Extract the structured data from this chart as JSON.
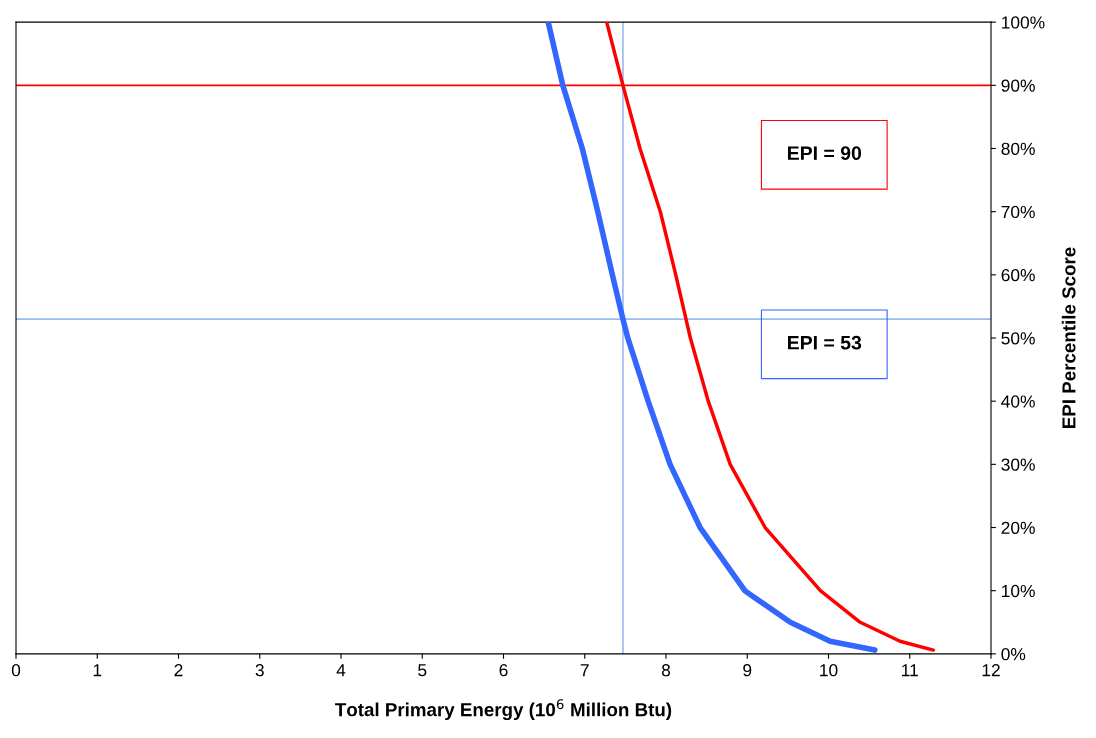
{
  "chart_data": {
    "type": "line",
    "xlabel": "Total Primary Energy (10$^{6}$ Million Btu)",
    "ylabel": "EPI Percentile Score",
    "xlim": [
      0,
      12
    ],
    "xticks": [
      0,
      1,
      2,
      3,
      4,
      5,
      6,
      7,
      8,
      9,
      10,
      11,
      12
    ],
    "ylim": [
      0,
      100
    ],
    "yticks": [
      {
        "value": 0,
        "label": "0%"
      },
      {
        "value": 10,
        "label": "10%"
      },
      {
        "value": 20,
        "label": "20%"
      },
      {
        "value": 30,
        "label": "30%"
      },
      {
        "value": 40,
        "label": "40%"
      },
      {
        "value": 50,
        "label": "50%"
      },
      {
        "value": 60,
        "label": "60%"
      },
      {
        "value": 70,
        "label": "70%"
      },
      {
        "value": 80,
        "label": "80%"
      },
      {
        "value": 90,
        "label": "90%"
      },
      {
        "value": 100,
        "label": "100%"
      }
    ],
    "series": [
      {
        "color": "#3366ff",
        "x": [
          6.55,
          6.73,
          6.97,
          7.16,
          7.34,
          7.47,
          7.53,
          7.78,
          8.05,
          8.42,
          8.97,
          9.53,
          10.02,
          10.57
        ],
        "values": [
          100,
          90,
          80,
          70,
          60,
          53,
          50,
          40,
          30,
          20,
          10,
          5,
          2,
          0.6
        ]
      },
      {
        "color": "#ff0000",
        "x": [
          7.27,
          7.47,
          7.68,
          7.93,
          8.12,
          8.3,
          8.52,
          8.79,
          9.22,
          9.9,
          10.39,
          10.88,
          11.29
        ],
        "values": [
          100,
          90,
          80,
          70,
          60,
          50,
          40,
          30,
          20,
          10,
          5,
          2,
          0.6
        ]
      }
    ],
    "ref_lines": [
      {
        "axis": "y",
        "value": 90,
        "color": "#ff0000"
      },
      {
        "axis": "y",
        "value": 53,
        "color": "#99bbee"
      },
      {
        "axis": "x",
        "value": 7.47,
        "color": "#99bbee"
      }
    ],
    "annotations": [
      "EPI = 90",
      "EPI = 53"
    ],
    "grid": false,
    "legend": false,
    "marker": "none",
    "line_style": "solid"
  }
}
